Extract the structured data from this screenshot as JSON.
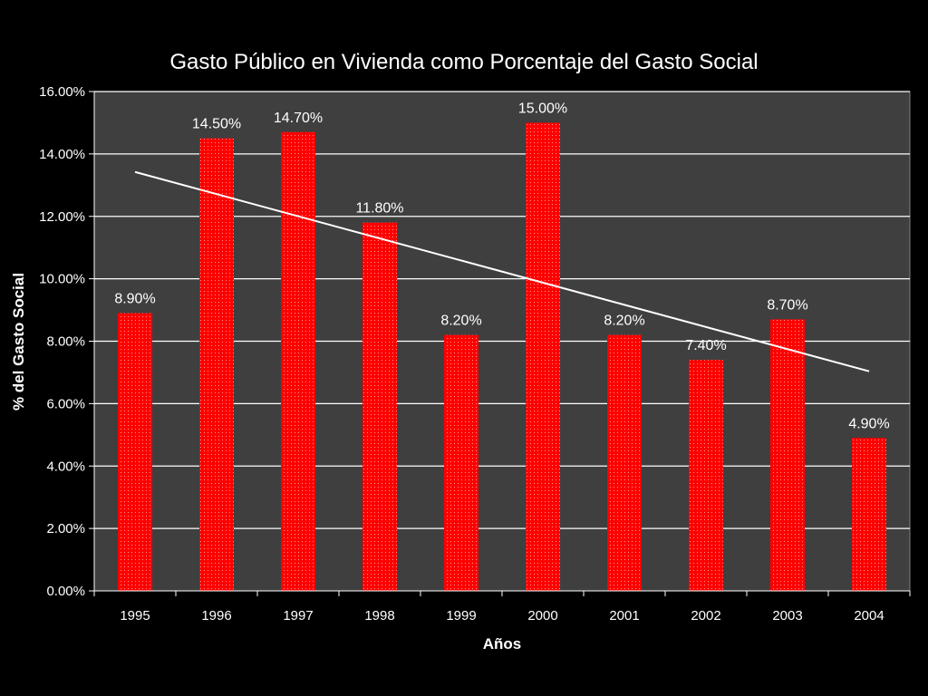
{
  "chart_data": {
    "type": "bar",
    "title": "Gasto Público en Vivienda como Porcentaje del Gasto Social",
    "xlabel": "Años",
    "ylabel": "% del Gasto Social",
    "categories": [
      "1995",
      "1996",
      "1997",
      "1998",
      "1999",
      "2000",
      "2001",
      "2002",
      "2003",
      "2004"
    ],
    "values": [
      8.9,
      14.5,
      14.7,
      11.8,
      8.2,
      15.0,
      8.2,
      7.4,
      8.7,
      4.9
    ],
    "data_labels": [
      "8.90%",
      "14.50%",
      "14.70%",
      "11.80%",
      "8.20%",
      "15.00%",
      "8.20%",
      "7.40%",
      "8.70%",
      "4.90%"
    ],
    "ylim": [
      0,
      16
    ],
    "y_ticks": [
      0,
      2,
      4,
      6,
      8,
      10,
      12,
      14,
      16
    ],
    "y_tick_labels": [
      "0.00%",
      "2.00%",
      "4.00%",
      "6.00%",
      "8.00%",
      "10.00%",
      "12.00%",
      "14.00%",
      "16.00%"
    ],
    "grid": true,
    "legend": "none",
    "trendline": {
      "type": "linear",
      "color": "#ffffff"
    },
    "colors": {
      "bar": "#ff0000",
      "plot_background": "#3f3f3f",
      "background": "#000000",
      "text": "#ffffff",
      "gridline": "#ffffff"
    }
  }
}
